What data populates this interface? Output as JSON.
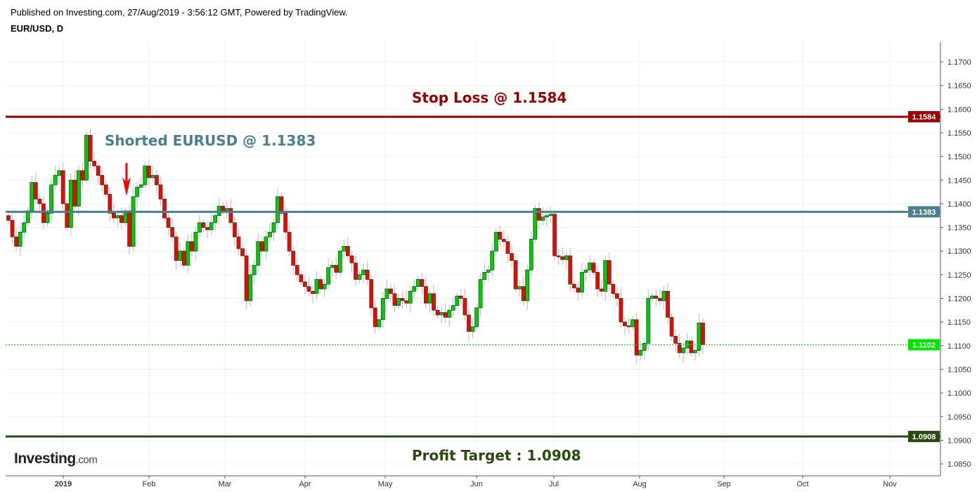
{
  "header": {
    "published": "Published on Investing.com, 27/Aug/2019 - 3:56:12 GMT, Powered by TradingView.",
    "symbol": "EUR/USD, D"
  },
  "logo": {
    "main": "Investing",
    "suffix": ".com"
  },
  "annotations": {
    "stop_loss": "Stop Loss @ 1.1584",
    "entry": "Shorted EURUSD @ 1.1383",
    "target": "Profit Target : 1.0908"
  },
  "colors": {
    "up": "#00d000",
    "down": "#ff0000",
    "stop_loss": "#990000",
    "entry": "#4a7f8c",
    "current": "#00e600",
    "target": "#2b4a12",
    "arrow": "#ff0000"
  },
  "chart_data": {
    "type": "candlestick",
    "title": "EUR/USD, D",
    "x_ticks": [
      "2019",
      "Feb",
      "Mar",
      "Apr",
      "May",
      "Jun",
      "Jul",
      "Aug",
      "Sep",
      "Oct",
      "Nov"
    ],
    "y_ticks": [
      1.17,
      1.165,
      1.16,
      1.155,
      1.15,
      1.145,
      1.14,
      1.135,
      1.13,
      1.125,
      1.12,
      1.115,
      1.11,
      1.105,
      1.1,
      1.095,
      1.09,
      1.085
    ],
    "ylim": [
      1.0825,
      1.1755
    ],
    "grid": true,
    "levels": [
      {
        "label": "1.1584",
        "value": 1.1584,
        "style": "solid",
        "color_key": "stop_loss"
      },
      {
        "label": "1.1383",
        "value": 1.1383,
        "style": "solid",
        "color_key": "entry"
      },
      {
        "label": "1.1102",
        "value": 1.1102,
        "style": "dotted",
        "color_key": "current"
      },
      {
        "label": "1.0908",
        "value": 1.0908,
        "style": "solid",
        "color_key": "target"
      }
    ],
    "close": [
      1.1365,
      1.133,
      1.131,
      1.134,
      1.136,
      1.1385,
      1.1445,
      1.141,
      1.14,
      1.136,
      1.138,
      1.144,
      1.146,
      1.147,
      1.14,
      1.135,
      1.145,
      1.1395,
      1.147,
      1.145,
      1.1545,
      1.149,
      1.148,
      1.146,
      1.144,
      1.142,
      1.138,
      1.137,
      1.1375,
      1.136,
      1.1385,
      1.131,
      1.1415,
      1.1435,
      1.144,
      1.148,
      1.1455,
      1.146,
      1.144,
      1.141,
      1.137,
      1.135,
      1.133,
      1.128,
      1.13,
      1.127,
      1.132,
      1.13,
      1.134,
      1.136,
      1.135,
      1.1345,
      1.136,
      1.1375,
      1.1395,
      1.1385,
      1.139,
      1.136,
      1.133,
      1.1305,
      1.129,
      1.1195,
      1.125,
      1.127,
      1.132,
      1.13,
      1.133,
      1.134,
      1.136,
      1.1415,
      1.138,
      1.134,
      1.13,
      1.127,
      1.125,
      1.1235,
      1.1225,
      1.1215,
      1.121,
      1.124,
      1.122,
      1.123,
      1.1265,
      1.127,
      1.1255,
      1.13,
      1.131,
      1.129,
      1.1275,
      1.124,
      1.125,
      1.126,
      1.124,
      1.118,
      1.114,
      1.1155,
      1.12,
      1.122,
      1.121,
      1.1185,
      1.12,
      1.1195,
      1.119,
      1.1215,
      1.1225,
      1.124,
      1.1225,
      1.119,
      1.121,
      1.1175,
      1.1165,
      1.117,
      1.116,
      1.1175,
      1.1185,
      1.1205,
      1.12,
      1.1165,
      1.113,
      1.114,
      1.118,
      1.124,
      1.1255,
      1.126,
      1.13,
      1.134,
      1.1325,
      1.132,
      1.1295,
      1.128,
      1.122,
      1.1225,
      1.1195,
      1.126,
      1.1325,
      1.139,
      1.1365,
      1.1372,
      1.1375,
      1.1378,
      1.129,
      1.1288,
      1.1282,
      1.129,
      1.123,
      1.1222,
      1.1213,
      1.1255,
      1.126,
      1.1275,
      1.1255,
      1.122,
      1.1215,
      1.128,
      1.123,
      1.121,
      1.12,
      1.115,
      1.1142,
      1.114,
      1.1155,
      1.108,
      1.109,
      1.1105,
      1.12,
      1.1205,
      1.12,
      1.1195,
      1.1215,
      1.116,
      1.112,
      1.1105,
      1.1085,
      1.1095,
      1.111,
      1.1085,
      1.109,
      1.1148,
      1.1102
    ]
  }
}
